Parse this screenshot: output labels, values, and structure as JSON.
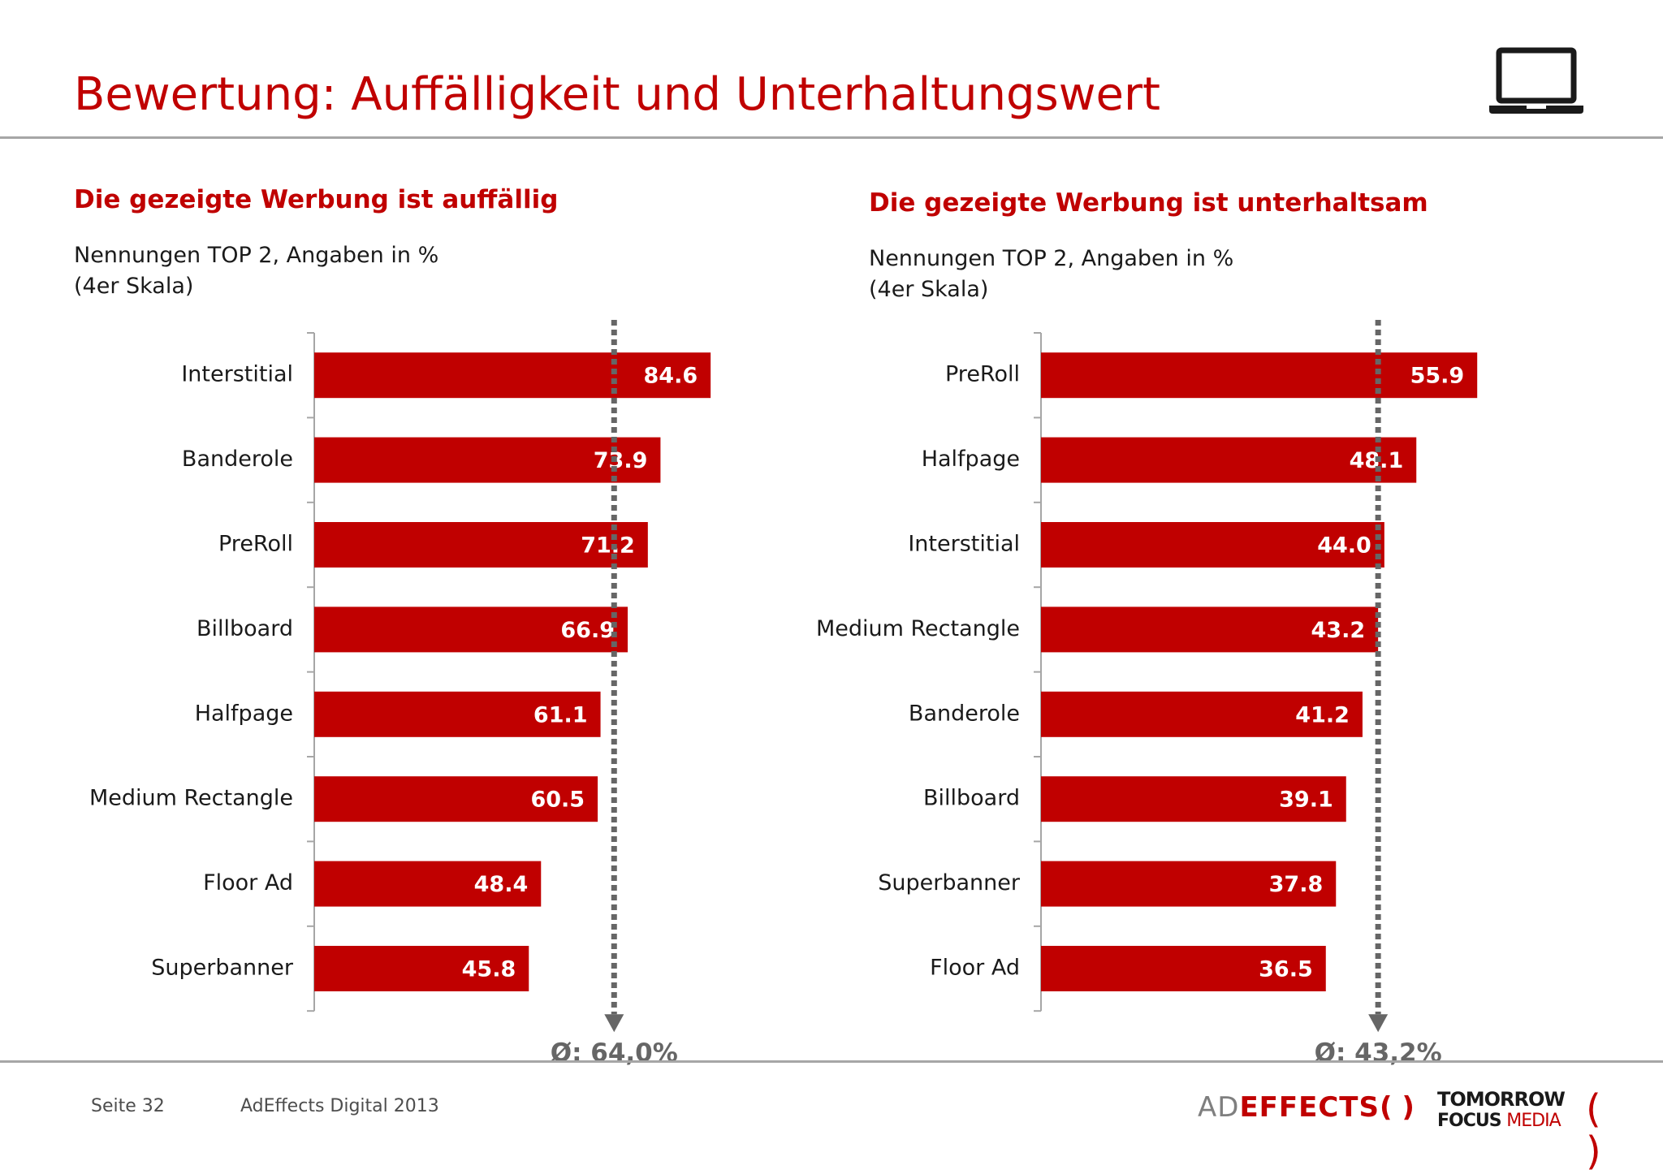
{
  "header": {
    "title": "Bewertung: Auffälligkeit und Unterhaltungswert",
    "icon": "laptop-icon"
  },
  "colors": {
    "accent": "#c00000",
    "bar": "#c00000",
    "avg_line": "#666666",
    "rule": "#a6a6a6"
  },
  "chart_data": [
    {
      "type": "bar",
      "orientation": "horizontal",
      "title": "Die gezeigte Werbung ist auffällig",
      "subtitle_line1": "Nennungen TOP 2, Angaben in %",
      "subtitle_line2": "(4er Skala)",
      "categories": [
        "Interstitial",
        "Banderole",
        "PreRoll",
        "Billboard",
        "Halfpage",
        "Medium Rectangle",
        "Floor Ad",
        "Superbanner"
      ],
      "values": [
        84.6,
        73.9,
        71.2,
        66.9,
        61.1,
        60.5,
        48.4,
        45.8
      ],
      "value_labels": [
        "84.6",
        "73.9",
        "71.2",
        "66.9",
        "61.1",
        "60.5",
        "48.4",
        "45.8"
      ],
      "xlim": [
        0,
        100
      ],
      "average": 64.0,
      "average_label": "Ø: 64,0%",
      "grid": false
    },
    {
      "type": "bar",
      "orientation": "horizontal",
      "title": "Die gezeigte Werbung ist unterhaltsam",
      "subtitle_line1": "Nennungen TOP 2, Angaben in %",
      "subtitle_line2": "(4er Skala)",
      "categories": [
        "PreRoll",
        "Halfpage",
        "Interstitial",
        "Medium Rectangle",
        "Banderole",
        "Billboard",
        "Superbanner",
        "Floor Ad"
      ],
      "values": [
        55.9,
        48.1,
        44.0,
        43.2,
        41.2,
        39.1,
        37.8,
        36.5
      ],
      "value_labels": [
        "55.9",
        "48.1",
        "44.0",
        "43.2",
        "41.2",
        "39.1",
        "37.8",
        "36.5"
      ],
      "xlim": [
        0,
        100
      ],
      "average": 43.2,
      "average_label": "Ø: 43,2%",
      "grid": false
    }
  ],
  "footer": {
    "page": "Seite 32",
    "source": "AdEffects Digital 2013",
    "logo1_ad": "AD",
    "logo1_effects": "EFFECTS",
    "logo1_paren": "( )",
    "logo2_line1": "TOMORROW",
    "logo2_line2a": "FOCUS",
    "logo2_line2b": "MEDIA",
    "logo2_paren": "( )"
  }
}
